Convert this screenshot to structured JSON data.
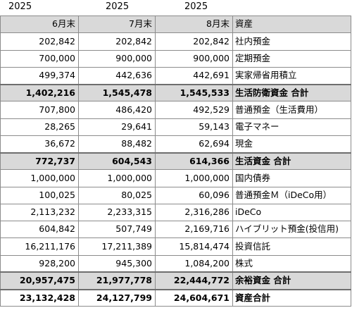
{
  "years": [
    "2025",
    "2025",
    "2025"
  ],
  "headers": [
    "6月末",
    "7月末",
    "8月末",
    "資産"
  ],
  "rows": [
    {
      "type": "item",
      "v": [
        "202,842",
        "202,842",
        "202,842"
      ],
      "name": "社内預金"
    },
    {
      "type": "item",
      "v": [
        "700,000",
        "900,000",
        "900,000"
      ],
      "name": "定期預金"
    },
    {
      "type": "item",
      "v": [
        "499,374",
        "442,636",
        "442,691"
      ],
      "name": "実家帰省用積立"
    },
    {
      "type": "sub",
      "v": [
        "1,402,216",
        "1,545,478",
        "1,545,533"
      ],
      "name": "生活防衛資金 合計"
    },
    {
      "type": "item",
      "v": [
        "707,800",
        "486,420",
        "492,529"
      ],
      "name": "普通預金（生活費用）"
    },
    {
      "type": "item",
      "v": [
        "28,265",
        "29,641",
        "59,143"
      ],
      "name": "電子マネー"
    },
    {
      "type": "item",
      "v": [
        "36,672",
        "88,482",
        "62,694"
      ],
      "name": "現金"
    },
    {
      "type": "sub",
      "v": [
        "772,737",
        "604,543",
        "614,366"
      ],
      "name": "生活資金 合計"
    },
    {
      "type": "item",
      "v": [
        "1,000,000",
        "1,000,000",
        "1,000,000"
      ],
      "name": "国内債券"
    },
    {
      "type": "item",
      "v": [
        "100,025",
        "80,025",
        "60,096"
      ],
      "name": "普通預金Ｍ（iDeCo用）"
    },
    {
      "type": "item",
      "v": [
        "2,113,232",
        "2,233,315",
        "2,316,286"
      ],
      "name": "iDeCo"
    },
    {
      "type": "item",
      "v": [
        "604,842",
        "507,749",
        "2,169,716"
      ],
      "name": "ハイブリット預金(投信用)"
    },
    {
      "type": "item",
      "v": [
        "16,211,176",
        "17,211,389",
        "15,814,474"
      ],
      "name": "投資信託"
    },
    {
      "type": "item",
      "v": [
        "928,200",
        "945,300",
        "1,084,200"
      ],
      "name": "株式"
    },
    {
      "type": "sub",
      "v": [
        "20,957,475",
        "21,977,778",
        "22,444,772"
      ],
      "name": "余裕資金 合計"
    },
    {
      "type": "grand",
      "v": [
        "23,132,428",
        "24,127,799",
        "24,604,671"
      ],
      "name": "資産合計"
    }
  ]
}
